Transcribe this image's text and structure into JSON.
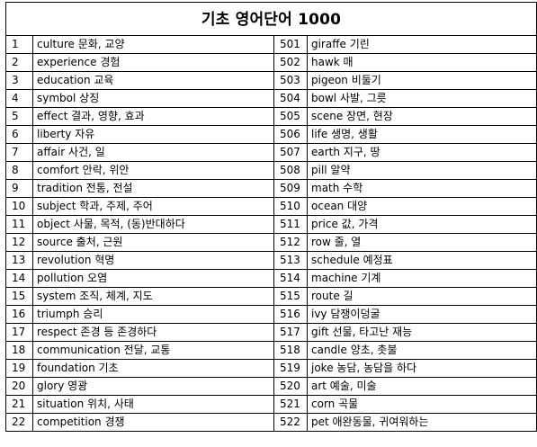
{
  "title": "기초 영어단어 1000",
  "rows": [
    {
      "n1": "1",
      "w1": "culture 문화, 교양",
      "n2": "501",
      "w2": "giraffe 기린"
    },
    {
      "n1": "2",
      "w1": "experience 경험",
      "n2": "502",
      "w2": "hawk 매"
    },
    {
      "n1": "3",
      "w1": "education 교육",
      "n2": "503",
      "w2": "pigeon 비둘기"
    },
    {
      "n1": "4",
      "w1": "symbol 상징",
      "n2": "504",
      "w2": "bowl 사발, 그릇"
    },
    {
      "n1": "5",
      "w1": "effect 결과, 영향, 효과",
      "n2": "505",
      "w2": "scene 장면, 현장"
    },
    {
      "n1": "6",
      "w1": "liberty 자유",
      "n2": "506",
      "w2": "life 생명, 생활"
    },
    {
      "n1": "7",
      "w1": "affair 사건, 일",
      "n2": "507",
      "w2": "earth 지구, 땅"
    },
    {
      "n1": "8",
      "w1": "comfort 안락, 위안",
      "n2": "508",
      "w2": "pill 알약"
    },
    {
      "n1": "9",
      "w1": "tradition 전통, 전설",
      "n2": "509",
      "w2": "math 수학"
    },
    {
      "n1": "10",
      "w1": "subject 학과, 주제, 주어",
      "n2": "510",
      "w2": "ocean 대양"
    },
    {
      "n1": "11",
      "w1": "object 사물, 목적, (동)반대하다",
      "n2": "511",
      "w2": "price 값, 가격"
    },
    {
      "n1": "12",
      "w1": "source 출처, 근원",
      "n2": "512",
      "w2": "row 줄, 열"
    },
    {
      "n1": "13",
      "w1": "revolution 혁명",
      "n2": "513",
      "w2": "schedule 예정표"
    },
    {
      "n1": "14",
      "w1": "pollution 오염",
      "n2": "514",
      "w2": "machine 기계"
    },
    {
      "n1": "15",
      "w1": "system 조직, 체계, 지도",
      "n2": "515",
      "w2": "route 길"
    },
    {
      "n1": "16",
      "w1": "triumph 승리",
      "n2": "516",
      "w2": "ivy 담쟁이덩굴"
    },
    {
      "n1": "17",
      "w1": "respect 존경 등 존경하다",
      "n2": "517",
      "w2": "gift 선물, 타고난 재능"
    },
    {
      "n1": "18",
      "w1": "communication 전달, 교통",
      "n2": "518",
      "w2": "candle 양초, 촛불"
    },
    {
      "n1": "19",
      "w1": "foundation 기초",
      "n2": "519",
      "w2": "joke 농담, 농담을 하다"
    },
    {
      "n1": "20",
      "w1": "glory 영광",
      "n2": "520",
      "w2": "art 예술, 미술"
    },
    {
      "n1": "21",
      "w1": "situation 위치, 사태",
      "n2": "521",
      "w2": "corn 곡물"
    },
    {
      "n1": "22",
      "w1": "competition 경쟁",
      "n2": "522",
      "w2": "pet 애완동물, 귀여워하는"
    }
  ]
}
